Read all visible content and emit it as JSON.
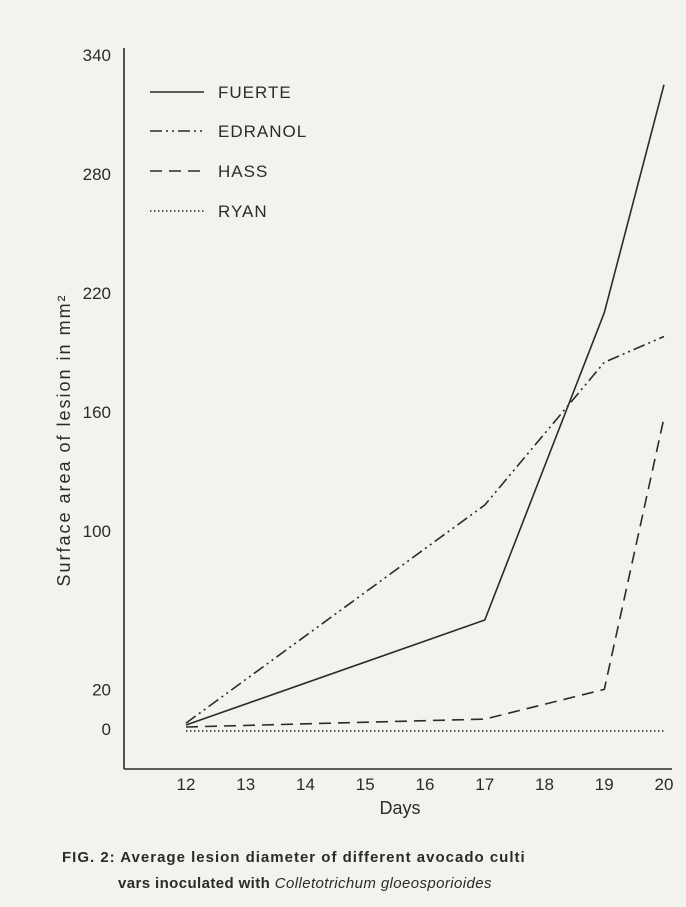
{
  "chart_data": {
    "type": "line",
    "title": "",
    "xlabel": "Days",
    "ylabel": "Surface area of lesion in mm²",
    "x_ticks": [
      12,
      13,
      14,
      15,
      16,
      17,
      18,
      19,
      20
    ],
    "y_ticks": [
      0,
      20,
      100,
      160,
      220,
      280,
      340
    ],
    "xlim": [
      11,
      20
    ],
    "ylim": [
      -20,
      340
    ],
    "grid": false,
    "legend_position": "top-left",
    "series": [
      {
        "name": "FUERTE",
        "style": "solid",
        "x": [
          12,
          17,
          19,
          20
        ],
        "y": [
          2,
          55,
          210,
          325
        ]
      },
      {
        "name": "EDRANOL",
        "style": "dash-dot-dot",
        "x": [
          12,
          17,
          19,
          20
        ],
        "y": [
          3,
          113,
          185,
          198
        ]
      },
      {
        "name": "HASS",
        "style": "dashed",
        "x": [
          12,
          17,
          19,
          20
        ],
        "y": [
          1,
          5,
          20,
          157
        ]
      },
      {
        "name": "RYAN",
        "style": "dotted",
        "x": [
          12,
          17,
          19,
          20
        ],
        "y": [
          -1,
          -1,
          -1,
          -1
        ]
      }
    ]
  },
  "caption": {
    "line1": "FIG.  2:  Average lesion diameter of different avocado culti",
    "line2_prefix": "vars inoculated with ",
    "line2_organism": "Colletotrichum gloeosporioides"
  }
}
